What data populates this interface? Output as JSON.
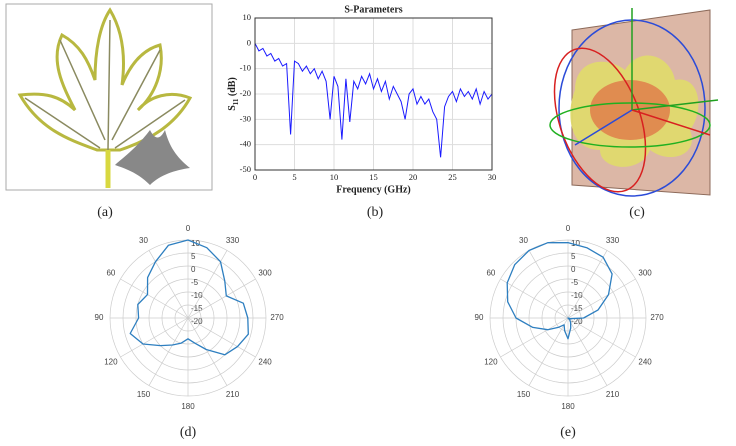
{
  "panel_labels": [
    "(a)",
    "(b)",
    "(c)",
    "(d)",
    "(e)"
  ],
  "chart_data": [
    {
      "type": "line",
      "title": "S-Parameters",
      "x_label": "Frequency (GHz)",
      "y_label": {
        "main": "S",
        "sub": "11",
        "unit": " (dB)"
      },
      "x": [
        0,
        0.5,
        1,
        1.5,
        2,
        2.5,
        3,
        3.5,
        4,
        4.5,
        5,
        5.5,
        6,
        6.5,
        7,
        7.5,
        8,
        8.5,
        9,
        9.5,
        10,
        10.5,
        11,
        11.5,
        12,
        12.5,
        13,
        13.5,
        14,
        14.5,
        15,
        15.5,
        16,
        16.5,
        17,
        17.5,
        18,
        18.5,
        19,
        19.5,
        20,
        20.5,
        21,
        21.5,
        22,
        22.5,
        23,
        23.5,
        24,
        24.5,
        25,
        25.5,
        26,
        26.5,
        27,
        27.5,
        28,
        28.5,
        29,
        29.5,
        30
      ],
      "values": [
        0,
        -3,
        -2,
        -5,
        -4,
        -7,
        -6,
        -9,
        -8,
        -36,
        -7,
        -8,
        -11,
        -9,
        -12,
        -10,
        -14,
        -11,
        -15,
        -30,
        -13,
        -17,
        -38,
        -14,
        -31,
        -15,
        -18,
        -13,
        -16,
        -12,
        -18,
        -14,
        -19,
        -15,
        -22,
        -17,
        -20,
        -23,
        -30,
        -20,
        -18,
        -24,
        -21,
        -24,
        -22,
        -27,
        -30,
        -45,
        -25,
        -21,
        -19,
        -23,
        -18,
        -21,
        -19,
        -22,
        -18,
        -24,
        -19,
        -22,
        -20
      ],
      "color": "#1a1aff",
      "xlim": [
        0,
        30
      ],
      "xticks": [
        0,
        5,
        10,
        15,
        20,
        25,
        30
      ],
      "ylim": [
        -50,
        10
      ],
      "yticks": [
        -50,
        -40,
        -30,
        -20,
        -10,
        0,
        10
      ],
      "grid": true
    },
    {
      "type": "polar",
      "zero": "top",
      "direction": "counterclockwise",
      "color": "#2e7fc0",
      "theta": [
        0,
        15,
        30,
        45,
        60,
        75,
        90,
        105,
        120,
        135,
        150,
        165,
        180,
        195,
        210,
        225,
        240,
        255,
        270,
        285,
        300,
        315,
        330,
        345
      ],
      "values": [
        10,
        9,
        5,
        2,
        -2,
        0,
        -1,
        3,
        0,
        -5,
        -8,
        -10,
        -12,
        -10,
        -6,
        0,
        2,
        4,
        3,
        2,
        -3,
        0,
        5,
        8
      ],
      "rlim": [
        -20,
        10
      ],
      "rticks": [
        10,
        5,
        0,
        -5,
        -10,
        -15,
        -20
      ],
      "thetaticks": [
        0,
        30,
        60,
        90,
        120,
        150,
        180,
        210,
        240,
        270,
        300,
        330
      ]
    },
    {
      "type": "polar",
      "zero": "top",
      "direction": "counterclockwise",
      "color": "#2e7fc0",
      "theta": [
        0,
        15,
        30,
        45,
        60,
        75,
        90,
        105,
        120,
        135,
        150,
        165,
        180,
        195,
        210,
        225,
        240,
        255,
        270,
        285,
        300,
        315,
        330,
        345
      ],
      "values": [
        9,
        10,
        10,
        9,
        7,
        4,
        0,
        -6,
        -11,
        -15,
        -17,
        -15,
        -12,
        -16,
        -18,
        -19,
        -20,
        -19,
        -14,
        -8,
        -2,
        4,
        7,
        8
      ],
      "rlim": [
        -20,
        10
      ],
      "rticks": [
        10,
        5,
        0,
        -5,
        -10,
        -15,
        -20
      ],
      "thetaticks": [
        0,
        30,
        60,
        90,
        120,
        150,
        180,
        210,
        240,
        270,
        300,
        330
      ]
    }
  ]
}
